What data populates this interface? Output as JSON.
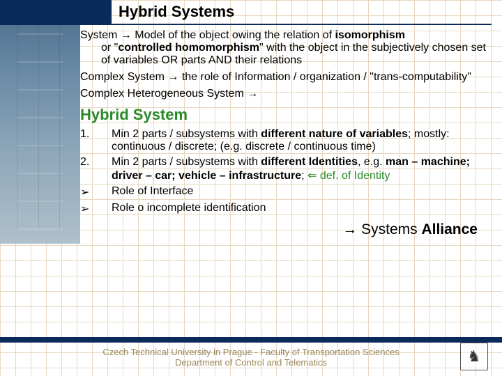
{
  "title": "Hybrid Systems",
  "title_fontsize": 22,
  "colors": {
    "title_blue": "#0a2a5c",
    "green": "#2a8a2a",
    "footer_text": "#9a865a",
    "grid": "#e8d8c0"
  },
  "body_fontsize": 16,
  "para1": {
    "lead": "System ",
    "arrow": "→",
    "rest1": " Model of the object owing the relation of ",
    "bold1": "isomorphism",
    "rest2": " or \"",
    "bold2": "controlled homomorphism",
    "rest3": "\" with the object in the subjectively chosen set of variables OR parts AND their relations"
  },
  "para2": {
    "lead": "Complex System ",
    "arrow": "→",
    "rest": " the role of Information / organization / \"trans-computability\""
  },
  "para3": {
    "lead": "Complex Heterogeneous System ",
    "arrow": "→"
  },
  "hybrid_heading": "Hybrid System",
  "hybrid_fontsize": 22,
  "list": [
    {
      "marker": "1.",
      "text_a": "Min 2 parts / subsystems with ",
      "bold_a": "different nature of variables",
      "text_b": "; mostly: continuous / discrete; (e.g. discrete / continuous time)"
    },
    {
      "marker": "2.",
      "text_a": "Min 2 parts / subsystems with ",
      "bold_a": "different Identities",
      "text_b": ", e.g. ",
      "bold_b": "man – machine; driver – car; vehicle – infrastructure",
      "text_c": "; ",
      "green_arrow": "⇐",
      "green_text": " def. of Identity"
    },
    {
      "marker": "➢",
      "text_a": "Role of Interface"
    },
    {
      "marker": "➢",
      "text_a": "Role o incomplete identification"
    }
  ],
  "alliance": {
    "arrow": "→",
    "text": " Systems ",
    "bold": "Alliance",
    "fontsize": 21
  },
  "footer_line1": "Czech Technical University in Prague - Faculty of Transportation Sciences",
  "footer_line2": "Department of Control and Telematics",
  "footer_fontsize": 13,
  "logo_glyph": "♞"
}
